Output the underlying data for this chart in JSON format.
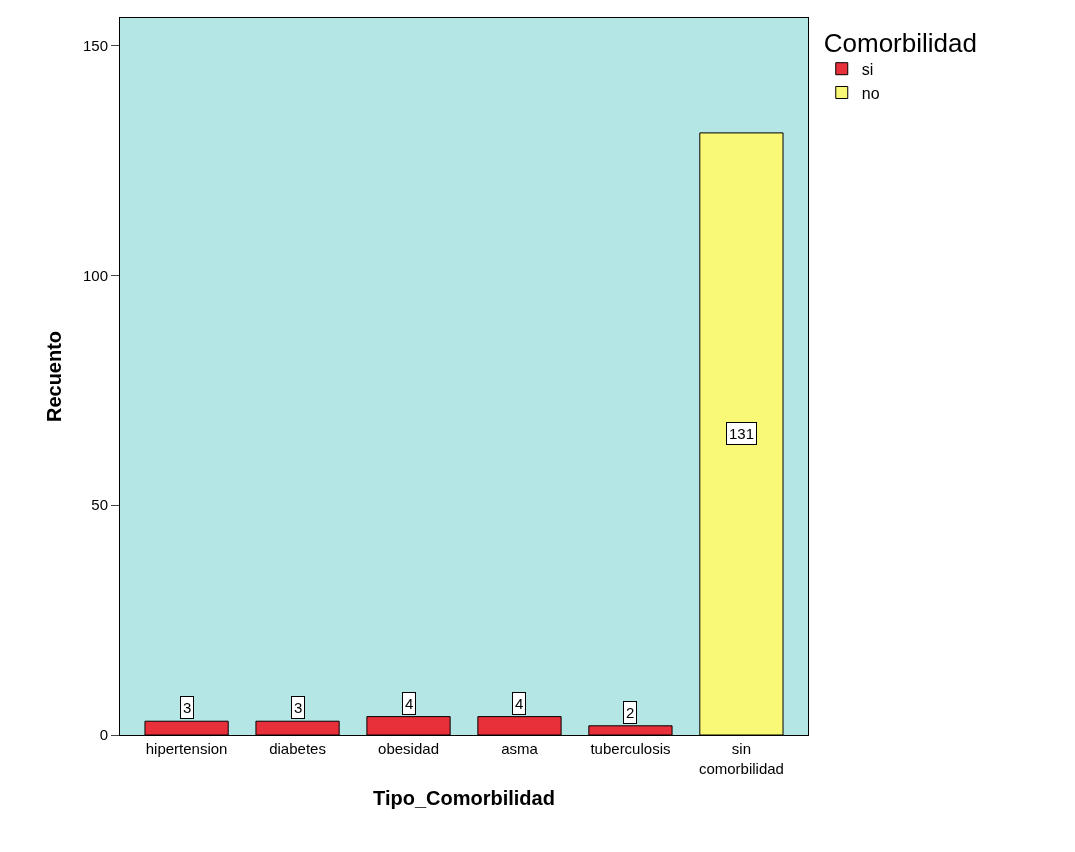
{
  "chart_data": {
    "type": "bar",
    "xlabel": "Tipo_Comorbilidad",
    "ylabel": "Recuento",
    "legend_title": "Comorbilidad",
    "categories": [
      "hipertension",
      "diabetes",
      "obesidad",
      "asma",
      "tuberculosis",
      "sin comorbilidad"
    ],
    "series": [
      {
        "name": "si",
        "color": "#e8303a",
        "values": [
          3,
          3,
          4,
          4,
          2,
          null
        ]
      },
      {
        "name": "no",
        "color": "#f9f877",
        "values": [
          null,
          null,
          null,
          null,
          null,
          131
        ]
      }
    ],
    "ylim": [
      0,
      156
    ],
    "yticks": [
      0,
      50,
      100,
      150
    ],
    "data_labels": true,
    "legend": "top right",
    "grid": false
  }
}
